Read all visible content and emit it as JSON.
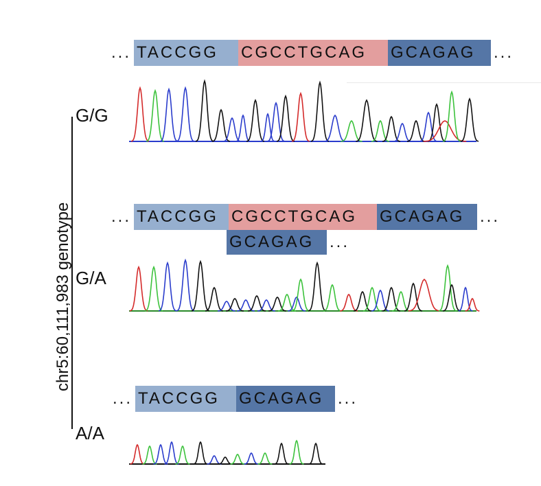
{
  "axis_label": "chr5:60,111,983 genotype",
  "genotypes": [
    "G/G",
    "G/A",
    "A/A"
  ],
  "ellipsis": "...",
  "rows": {
    "gg": {
      "left": "TACCGG",
      "middle": "CGCCTGCAG",
      "right": "GCAGAG"
    },
    "ga": {
      "left": "TACCGG",
      "middle": "CGCCTGCAG",
      "right": "GCAGAG",
      "second": "GCAGAG"
    },
    "aa": {
      "left": "TACCGG",
      "right": "GCAGAG"
    }
  },
  "colors": {
    "light_block": "#96afcf",
    "pink_block": "#e39e9e",
    "dark_block": "#5576a6",
    "trace_red": "#d42a2a",
    "trace_green": "#3cc23c",
    "trace_blue": "#2a3ccc",
    "trace_black": "#111111"
  }
}
